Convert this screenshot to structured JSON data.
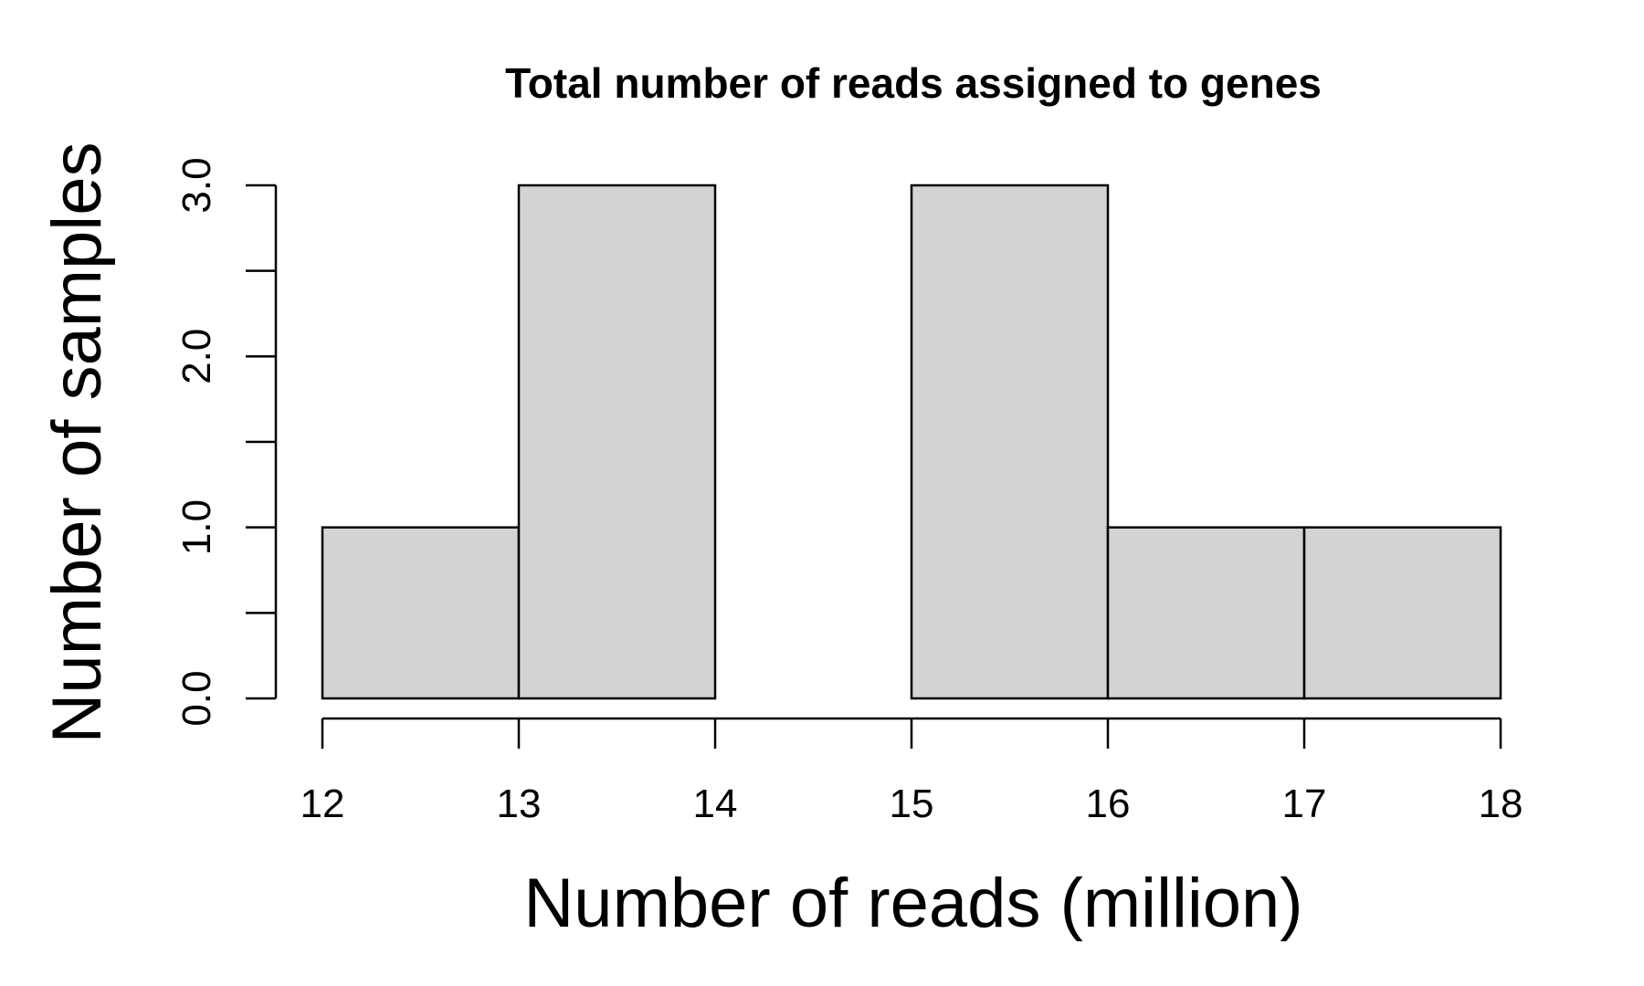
{
  "chart_data": {
    "type": "bar",
    "title": "Total number of reads assigned to genes",
    "xlabel": "Number of reads (million)",
    "ylabel": "Number of samples",
    "bins": [
      {
        "start": 12,
        "end": 13,
        "count": 1
      },
      {
        "start": 13,
        "end": 14,
        "count": 3
      },
      {
        "start": 14,
        "end": 15,
        "count": 0
      },
      {
        "start": 15,
        "end": 16,
        "count": 3
      },
      {
        "start": 16,
        "end": 17,
        "count": 1
      },
      {
        "start": 17,
        "end": 18,
        "count": 1
      }
    ],
    "xlim": [
      12,
      18
    ],
    "ylim": [
      0,
      3
    ],
    "x_ticks": [
      12,
      13,
      14,
      15,
      16,
      17,
      18
    ],
    "x_tick_labels": [
      "12",
      "13",
      "14",
      "15",
      "16",
      "17",
      "18"
    ],
    "y_ticks": [
      0,
      0.5,
      1,
      1.5,
      2,
      2.5,
      3
    ],
    "y_tick_labels": [
      "0.0",
      "",
      "1.0",
      "",
      "2.0",
      "",
      "3.0"
    ],
    "grid": false,
    "legend": "none",
    "bar_fill": "#d3d3d3",
    "bar_stroke": "#000000"
  }
}
